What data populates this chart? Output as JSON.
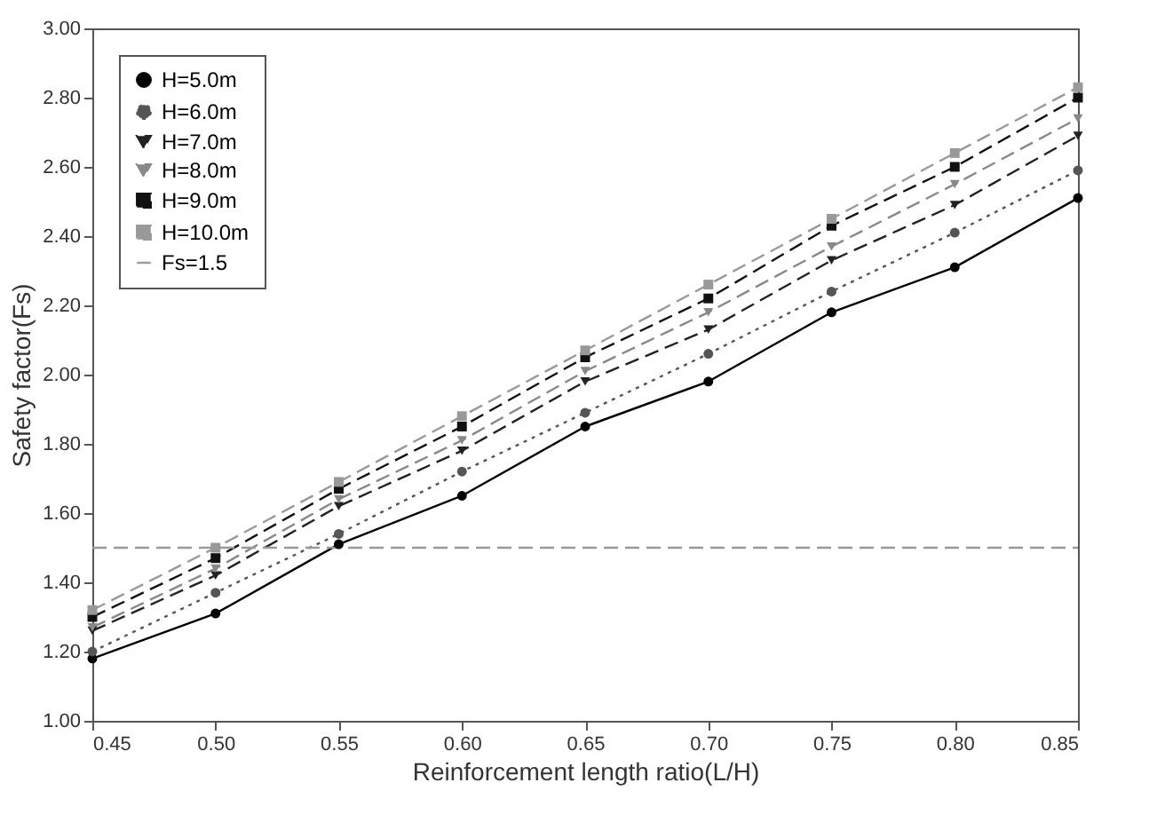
{
  "chart_data": {
    "type": "line",
    "xlabel": "Reinforcement length ratio(L/H)",
    "ylabel": "Safety factor(Fs)",
    "x": [
      0.45,
      0.5,
      0.55,
      0.6,
      0.65,
      0.7,
      0.75,
      0.8,
      0.85
    ],
    "xlim": [
      0.45,
      0.85
    ],
    "xticks": [
      {
        "value": 0.45,
        "label": "0.45"
      },
      {
        "value": 0.5,
        "label": "0.50"
      },
      {
        "value": 0.55,
        "label": "0.55"
      },
      {
        "value": 0.6,
        "label": "0.60"
      },
      {
        "value": 0.65,
        "label": "0.65"
      },
      {
        "value": 0.7,
        "label": "0.70"
      },
      {
        "value": 0.75,
        "label": "0.75"
      },
      {
        "value": 0.8,
        "label": "0.80"
      },
      {
        "value": 0.85,
        "label": "0.85"
      }
    ],
    "ylim": [
      1,
      3
    ],
    "yticks": [
      {
        "value": 1,
        "label": "1.00"
      },
      {
        "value": 1.2,
        "label": "1.20"
      },
      {
        "value": 1.4,
        "label": "1.40"
      },
      {
        "value": 1.6,
        "label": "1.60"
      },
      {
        "value": 1.8,
        "label": "1.80"
      },
      {
        "value": 2,
        "label": "2.00"
      },
      {
        "value": 2.2,
        "label": "2.20"
      },
      {
        "value": 2.4,
        "label": "2.40"
      },
      {
        "value": 2.6,
        "label": "2.60"
      },
      {
        "value": 2.8,
        "label": "2.80"
      },
      {
        "value": 3,
        "label": "3.00"
      }
    ],
    "legend": "top left",
    "grid": false,
    "series": [
      {
        "name": "H=5.0m",
        "color": "#000000",
        "marker": "circle",
        "line_style": "solid",
        "values": [
          1.18,
          1.31,
          1.51,
          1.65,
          1.85,
          1.98,
          2.18,
          2.31,
          2.51
        ]
      },
      {
        "name": "H=6.0m",
        "color": "#555555",
        "marker": "circle",
        "line_style": "dotted",
        "values": [
          1.2,
          1.37,
          1.54,
          1.72,
          1.89,
          2.06,
          2.24,
          2.41,
          2.59
        ]
      },
      {
        "name": "H=7.0m",
        "color": "#222222",
        "marker": "triangle",
        "line_style": "dashed",
        "values": [
          1.26,
          1.42,
          1.62,
          1.78,
          1.98,
          2.13,
          2.33,
          2.49,
          2.69
        ]
      },
      {
        "name": "H=8.0m",
        "color": "#888888",
        "marker": "triangle",
        "line_style": "dashed",
        "values": [
          1.27,
          1.44,
          1.64,
          1.81,
          2.01,
          2.18,
          2.37,
          2.55,
          2.74
        ]
      },
      {
        "name": "H=9.0m",
        "color": "#111111",
        "marker": "square",
        "line_style": "dashed",
        "values": [
          1.3,
          1.47,
          1.67,
          1.85,
          2.05,
          2.22,
          2.43,
          2.6,
          2.8
        ]
      },
      {
        "name": "H=10.0m",
        "color": "#999999",
        "marker": "square",
        "line_style": "dashed",
        "values": [
          1.32,
          1.5,
          1.69,
          1.88,
          2.07,
          2.26,
          2.45,
          2.64,
          2.83
        ]
      }
    ],
    "ref_lines": [
      {
        "axis": "y",
        "value": 1.5,
        "label": "Fs=1.5",
        "color": "#999999",
        "line_style": "dashed"
      }
    ]
  }
}
